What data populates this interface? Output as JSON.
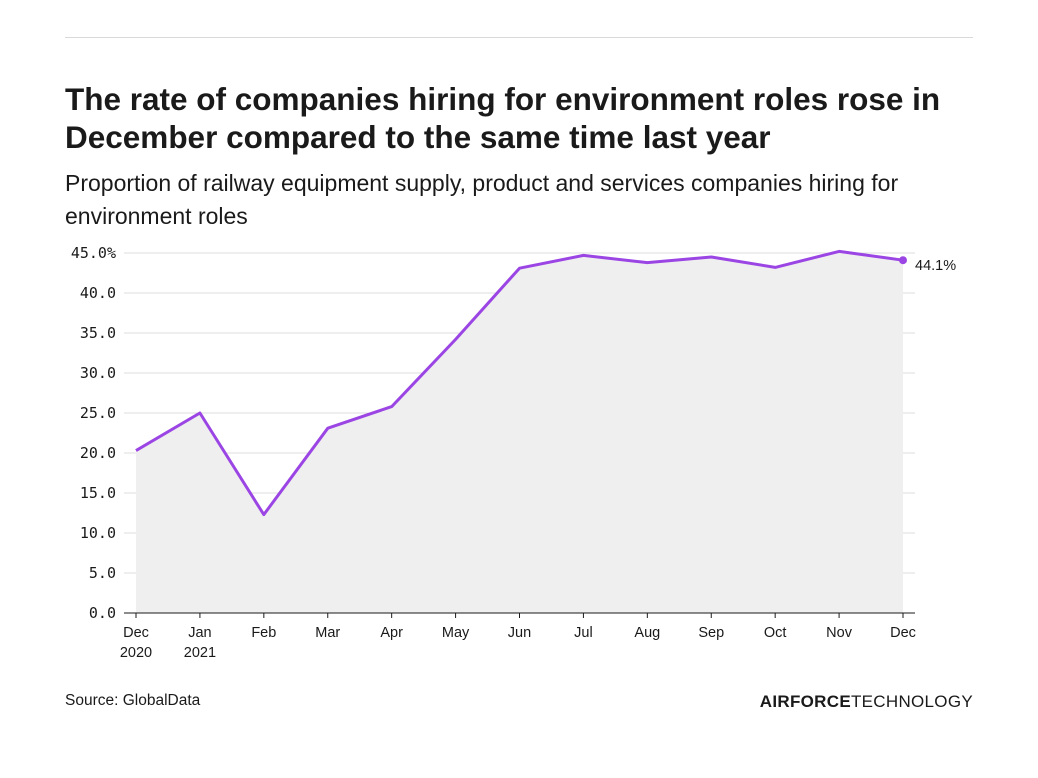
{
  "title": "The rate of companies hiring for environment roles rose in December compared to the same time last year",
  "subtitle": "Proportion of railway equipment supply, product and services companies hiring for environment roles",
  "source": "Source: GlobalData",
  "brand": {
    "part1": "AIRFORCE",
    "part2": "TECHNOLOGY"
  },
  "colors": {
    "line": "#9b45e4",
    "area": "#efefef",
    "grid": "#dcdcdc"
  },
  "chart_data": {
    "type": "area",
    "categories": [
      [
        "Dec",
        "2020"
      ],
      [
        "Jan",
        "2021"
      ],
      [
        "Feb",
        ""
      ],
      [
        "Mar",
        ""
      ],
      [
        "Apr",
        ""
      ],
      [
        "May",
        ""
      ],
      [
        "Jun",
        ""
      ],
      [
        "Jul",
        ""
      ],
      [
        "Aug",
        ""
      ],
      [
        "Sep",
        ""
      ],
      [
        "Oct",
        ""
      ],
      [
        "Nov",
        ""
      ],
      [
        "Dec",
        ""
      ]
    ],
    "values": [
      20.3,
      25.0,
      12.3,
      23.1,
      25.8,
      34.2,
      43.1,
      44.7,
      43.8,
      44.5,
      43.2,
      45.2,
      44.1
    ],
    "y_ticks": [
      "45.0%",
      "40.0",
      "35.0",
      "30.0",
      "25.0",
      "20.0",
      "15.0",
      "10.0",
      "5.0",
      "0.0"
    ],
    "ylim": [
      0,
      45
    ],
    "end_label": "44.1%",
    "grid": true
  }
}
